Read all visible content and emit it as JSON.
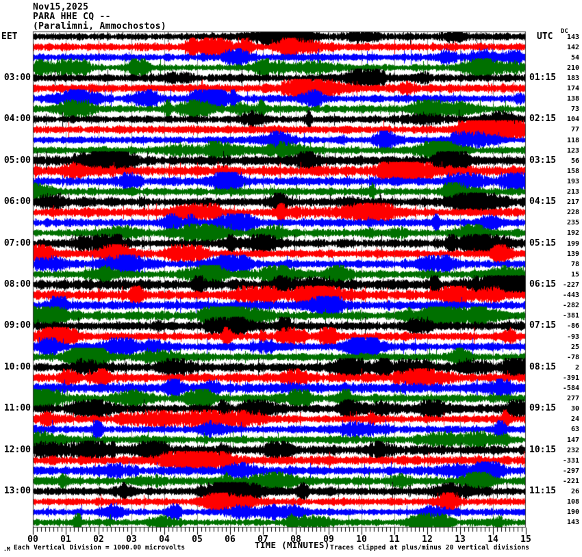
{
  "header": {
    "date_line": "Nov15,2025",
    "station_line": "PARA HHE CQ --",
    "location_line": "(Paralimni, Ammochostos)"
  },
  "axes": {
    "left_timezone_label": "EET",
    "right_timezone_label": "UTC",
    "dc_column_label": "DC",
    "x_axis_title": "TIME (MINUTES)",
    "x_tick_labels": [
      "00",
      "01",
      "02",
      "03",
      "04",
      "05",
      "06",
      "07",
      "08",
      "09",
      "10",
      "11",
      "12",
      "13",
      "14",
      "15"
    ]
  },
  "footer": {
    "scale_note": "Each Vertical Division = 1000.00 microvolts",
    "clip_note": "Traces clipped at plus/minus 20 vertical divisions",
    "watermark": ".M"
  },
  "colors": {
    "background": "#ffffff",
    "grid": "#8c8c8c",
    "frame": "#333333",
    "trace_color_cycle": [
      "#000000",
      "#ff0000",
      "#0000ff",
      "#007000"
    ]
  },
  "chart_data": {
    "type": "line",
    "subtype": "helicorder-seismogram",
    "title": "PARA HHE CQ -- (Paralimni, Ammochostos) Nov15,2025",
    "xlabel": "TIME (MINUTES)",
    "x_range_minutes": [
      0,
      15
    ],
    "minutes_per_line": 15,
    "vertical_division_microvolts": 1000.0,
    "clip_divisions": 20,
    "traces_per_hour": 4,
    "row_count": 48,
    "description": "48 consecutive 15-minute seismic noise traces, colored in a black/red/blue/green cycle; waveform samples are continuous ambient noise (not individually resolvable), DC offset per trace listed in right column",
    "rows": [
      {
        "i": 0,
        "dc": 143,
        "eet": "",
        "utc": "",
        "amp": 4.0,
        "seed": 11
      },
      {
        "i": 1,
        "dc": 142,
        "eet": "",
        "utc": "",
        "amp": 4.2,
        "seed": 108
      },
      {
        "i": 2,
        "dc": 54,
        "eet": "",
        "utc": "",
        "amp": 3.8,
        "seed": 205
      },
      {
        "i": 3,
        "dc": 210,
        "eet": "",
        "utc": "",
        "amp": 3.6,
        "seed": 302
      },
      {
        "i": 4,
        "dc": 183,
        "eet": "03:00",
        "utc": "01:15",
        "amp": 4.2,
        "seed": 399
      },
      {
        "i": 5,
        "dc": 174,
        "eet": "",
        "utc": "",
        "amp": 4.6,
        "seed": 496
      },
      {
        "i": 6,
        "dc": 138,
        "eet": "",
        "utc": "",
        "amp": 4.0,
        "seed": 593
      },
      {
        "i": 7,
        "dc": 73,
        "eet": "",
        "utc": "",
        "amp": 3.8,
        "seed": 690
      },
      {
        "i": 8,
        "dc": 104,
        "eet": "04:00",
        "utc": "02:15",
        "amp": 4.0,
        "seed": 787
      },
      {
        "i": 9,
        "dc": 77,
        "eet": "",
        "utc": "",
        "amp": 4.2,
        "seed": 884
      },
      {
        "i": 10,
        "dc": 118,
        "eet": "",
        "utc": "",
        "amp": 3.8,
        "seed": 981
      },
      {
        "i": 11,
        "dc": 123,
        "eet": "",
        "utc": "",
        "amp": 4.0,
        "seed": 1078
      },
      {
        "i": 12,
        "dc": 56,
        "eet": "05:00",
        "utc": "03:15",
        "amp": 5.2,
        "seed": 1175
      },
      {
        "i": 13,
        "dc": 158,
        "eet": "",
        "utc": "",
        "amp": 5.4,
        "seed": 1272
      },
      {
        "i": 14,
        "dc": 193,
        "eet": "",
        "utc": "",
        "amp": 4.6,
        "seed": 1369
      },
      {
        "i": 15,
        "dc": 213,
        "eet": "",
        "utc": "",
        "amp": 4.2,
        "seed": 1466
      },
      {
        "i": 16,
        "dc": 217,
        "eet": "06:00",
        "utc": "04:15",
        "amp": 4.8,
        "seed": 1563
      },
      {
        "i": 17,
        "dc": 228,
        "eet": "",
        "utc": "",
        "amp": 4.6,
        "seed": 1660
      },
      {
        "i": 18,
        "dc": 235,
        "eet": "",
        "utc": "",
        "amp": 4.2,
        "seed": 1757
      },
      {
        "i": 19,
        "dc": 192,
        "eet": "",
        "utc": "",
        "amp": 4.0,
        "seed": 1854
      },
      {
        "i": 20,
        "dc": 199,
        "eet": "07:00",
        "utc": "05:15",
        "amp": 4.6,
        "seed": 1951
      },
      {
        "i": 21,
        "dc": 139,
        "eet": "",
        "utc": "",
        "amp": 4.2,
        "seed": 2048
      },
      {
        "i": 22,
        "dc": 78,
        "eet": "",
        "utc": "",
        "amp": 4.0,
        "seed": 2145
      },
      {
        "i": 23,
        "dc": 15,
        "eet": "",
        "utc": "",
        "amp": 4.2,
        "seed": 2242
      },
      {
        "i": 24,
        "dc": -227,
        "eet": "08:00",
        "utc": "06:15",
        "amp": 5.6,
        "seed": 2339
      },
      {
        "i": 25,
        "dc": -443,
        "eet": "",
        "utc": "",
        "amp": 5.2,
        "seed": 2436
      },
      {
        "i": 26,
        "dc": -282,
        "eet": "",
        "utc": "",
        "amp": 4.8,
        "seed": 2533
      },
      {
        "i": 27,
        "dc": -381,
        "eet": "",
        "utc": "",
        "amp": 4.6,
        "seed": 2630
      },
      {
        "i": 28,
        "dc": -86,
        "eet": "09:00",
        "utc": "07:15",
        "amp": 4.6,
        "seed": 2727
      },
      {
        "i": 29,
        "dc": -93,
        "eet": "",
        "utc": "",
        "amp": 4.2,
        "seed": 2824
      },
      {
        "i": 30,
        "dc": 25,
        "eet": "",
        "utc": "",
        "amp": 4.0,
        "seed": 2921
      },
      {
        "i": 31,
        "dc": -78,
        "eet": "",
        "utc": "",
        "amp": 4.2,
        "seed": 3018
      },
      {
        "i": 32,
        "dc": 2,
        "eet": "10:00",
        "utc": "08:15",
        "amp": 4.8,
        "seed": 3115
      },
      {
        "i": 33,
        "dc": -391,
        "eet": "",
        "utc": "",
        "amp": 5.0,
        "seed": 3212
      },
      {
        "i": 34,
        "dc": -584,
        "eet": "",
        "utc": "",
        "amp": 5.4,
        "seed": 3309
      },
      {
        "i": 35,
        "dc": 277,
        "eet": "",
        "utc": "",
        "amp": 4.6,
        "seed": 3406
      },
      {
        "i": 36,
        "dc": 30,
        "eet": "11:00",
        "utc": "09:15",
        "amp": 4.6,
        "seed": 3503
      },
      {
        "i": 37,
        "dc": 24,
        "eet": "",
        "utc": "",
        "amp": 4.2,
        "seed": 3600
      },
      {
        "i": 38,
        "dc": 63,
        "eet": "",
        "utc": "",
        "amp": 4.0,
        "seed": 3697
      },
      {
        "i": 39,
        "dc": 147,
        "eet": "",
        "utc": "",
        "amp": 4.2,
        "seed": 3794
      },
      {
        "i": 40,
        "dc": 232,
        "eet": "12:00",
        "utc": "10:15",
        "amp": 5.0,
        "seed": 3891
      },
      {
        "i": 41,
        "dc": -331,
        "eet": "",
        "utc": "",
        "amp": 4.8,
        "seed": 3988
      },
      {
        "i": 42,
        "dc": -297,
        "eet": "",
        "utc": "",
        "amp": 4.6,
        "seed": 4085
      },
      {
        "i": 43,
        "dc": -221,
        "eet": "",
        "utc": "",
        "amp": 4.4,
        "seed": 4182
      },
      {
        "i": 44,
        "dc": 26,
        "eet": "13:00",
        "utc": "11:15",
        "amp": 4.2,
        "seed": 4279
      },
      {
        "i": 45,
        "dc": 108,
        "eet": "",
        "utc": "",
        "amp": 4.0,
        "seed": 4376
      },
      {
        "i": 46,
        "dc": 190,
        "eet": "",
        "utc": "",
        "amp": 3.8,
        "seed": 4473
      },
      {
        "i": 47,
        "dc": 143,
        "eet": "",
        "utc": "",
        "amp": 3.6,
        "seed": 4570
      }
    ]
  }
}
